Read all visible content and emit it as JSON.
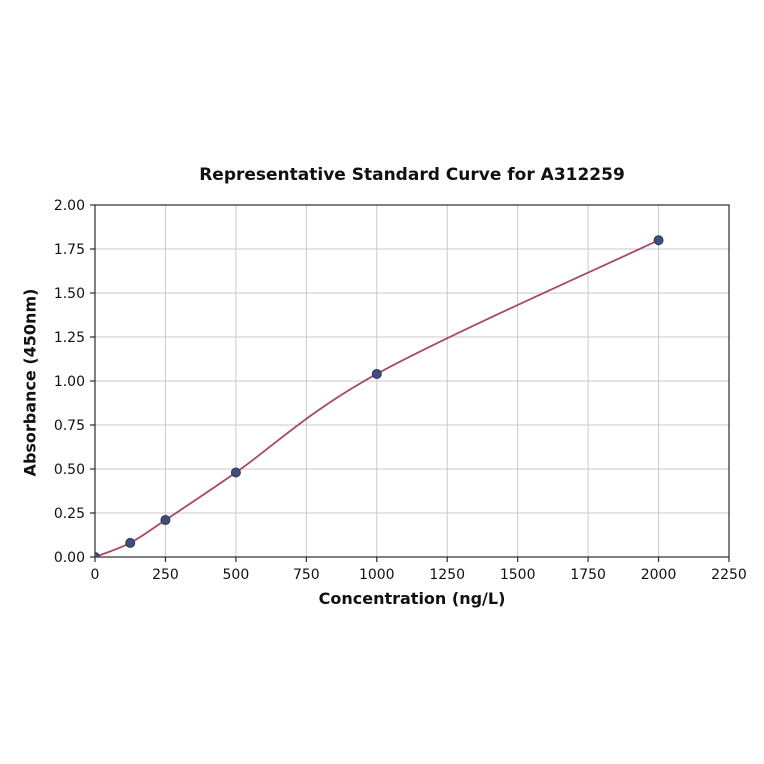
{
  "chart_data": {
    "type": "line",
    "title": "Representative Standard Curve for A312259",
    "xlabel": "Concentration (ng/L)",
    "ylabel": "Absorbance (450nm)",
    "xlim": [
      0,
      2250
    ],
    "ylim": [
      0,
      2.0
    ],
    "grid": true,
    "legend": "none",
    "x_ticks": {
      "values": [
        0,
        250,
        500,
        750,
        1000,
        1250,
        1500,
        1750,
        2000,
        2250
      ],
      "labels": [
        "0",
        "250",
        "500",
        "750",
        "1000",
        "1250",
        "1500",
        "1750",
        "2000",
        "2250"
      ]
    },
    "y_ticks": {
      "values": [
        0.0,
        0.25,
        0.5,
        0.75,
        1.0,
        1.25,
        1.5,
        1.75,
        2.0
      ],
      "labels": [
        "0.00",
        "0.25",
        "0.50",
        "0.75",
        "1.00",
        "1.25",
        "1.50",
        "1.75",
        "2.00"
      ]
    },
    "series": [
      {
        "name": "standard-curve",
        "x": [
          0,
          125,
          250,
          500,
          1000,
          2000
        ],
        "y": [
          0.0,
          0.08,
          0.21,
          0.48,
          1.04,
          1.8
        ]
      }
    ],
    "colors": {
      "line": "#a8486a",
      "marker_fill": "#3f4e7c",
      "marker_edge": "#2c3a5e",
      "grid": "#c9c9c9",
      "axis_border": "#2b2b2b",
      "text": "#111111"
    }
  }
}
